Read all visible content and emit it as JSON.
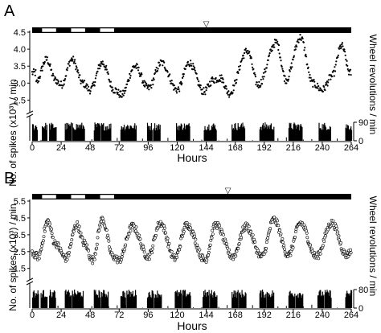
{
  "panel_letters": [
    "A",
    "B"
  ],
  "x_axis_label": "Hours",
  "y_axis_label_left": "No. of spikes (x10³) / min",
  "y_axis_label_right": "Wheel revolutions / min",
  "marker_symbol": "▽",
  "chart_data": [
    {
      "panel": "A",
      "type": "scatter",
      "xlabel": "Hours",
      "ylabel": "No. of spikes (x10³) / min",
      "xlim": [
        0,
        264
      ],
      "ylim": [
        2.25,
        4.5
      ],
      "x_ticks": [
        0,
        24,
        48,
        72,
        96,
        120,
        144,
        168,
        192,
        216,
        240,
        264
      ],
      "y_ticks": [
        2.5,
        3.0,
        3.5,
        4.0,
        4.5
      ],
      "y_tick_labels": [
        "2.5",
        "3.0",
        "3.5",
        "4.0",
        "4.5"
      ],
      "marker_style": "filled",
      "light_dark_bar": {
        "dark_bar_x_end": 264,
        "light_intervals": [
          [
            8,
            20
          ],
          [
            32,
            44
          ],
          [
            56,
            68
          ]
        ]
      },
      "arrow_marker_x": 144,
      "spike_peaks": [
        {
          "x": 3,
          "y": 3.0
        },
        {
          "x": 12,
          "y": 3.7
        },
        {
          "x": 19,
          "y": 3.1
        },
        {
          "x": 24,
          "y": 2.95
        },
        {
          "x": 33,
          "y": 3.7
        },
        {
          "x": 42,
          "y": 3.0
        },
        {
          "x": 48,
          "y": 2.8
        },
        {
          "x": 58,
          "y": 3.6
        },
        {
          "x": 68,
          "y": 2.8
        },
        {
          "x": 74,
          "y": 2.65
        },
        {
          "x": 85,
          "y": 3.5
        },
        {
          "x": 96,
          "y": 2.85
        },
        {
          "x": 107,
          "y": 3.6
        },
        {
          "x": 120,
          "y": 2.8
        },
        {
          "x": 130,
          "y": 3.6
        },
        {
          "x": 142,
          "y": 2.75
        },
        {
          "x": 150,
          "y": 3.1
        },
        {
          "x": 156,
          "y": 3.15
        },
        {
          "x": 163,
          "y": 2.7
        },
        {
          "x": 178,
          "y": 3.95
        },
        {
          "x": 187,
          "y": 2.95
        },
        {
          "x": 202,
          "y": 4.2
        },
        {
          "x": 210,
          "y": 3.1
        },
        {
          "x": 222,
          "y": 4.35
        },
        {
          "x": 232,
          "y": 3.0
        },
        {
          "x": 240,
          "y": 2.8
        },
        {
          "x": 248,
          "y": 3.2
        },
        {
          "x": 256,
          "y": 4.1
        },
        {
          "x": 263,
          "y": 3.3
        }
      ],
      "wheel_axis": {
        "ylim": [
          0,
          90
        ],
        "y_ticks": [
          0,
          90
        ],
        "y_tick_labels": [
          "0",
          "90"
        ]
      },
      "wheel_bouts": [
        [
          0,
          4
        ],
        [
          8,
          12
        ],
        [
          14,
          20
        ],
        [
          27,
          32
        ],
        [
          33,
          43
        ],
        [
          51,
          56
        ],
        [
          57,
          65
        ],
        [
          73,
          78
        ],
        [
          78,
          86
        ],
        [
          95,
          99
        ],
        [
          100,
          106
        ],
        [
          119,
          125
        ],
        [
          125,
          130
        ],
        [
          142,
          147
        ],
        [
          147,
          152
        ],
        [
          165,
          170
        ],
        [
          170,
          176
        ],
        [
          188,
          193
        ],
        [
          193,
          200
        ],
        [
          212,
          218
        ],
        [
          218,
          223
        ],
        [
          237,
          241
        ],
        [
          241,
          247
        ],
        [
          259,
          264
        ]
      ]
    },
    {
      "panel": "B",
      "type": "scatter",
      "xlabel": "Hours",
      "ylabel": "No. of spikes (x10³) / min",
      "xlim": [
        0,
        264
      ],
      "ylim": [
        1.2,
        5.5
      ],
      "x_ticks": [
        0,
        24,
        48,
        72,
        96,
        120,
        144,
        168,
        192,
        216,
        240,
        264
      ],
      "y_ticks": [
        1.5,
        2.5,
        3.5,
        4.5,
        5.5
      ],
      "y_tick_labels": [
        "1.5",
        "2.5",
        "3.5",
        "4.5",
        "5.5"
      ],
      "marker_style": "open",
      "light_dark_bar": {
        "dark_bar_x_end": 264,
        "light_intervals": [
          [
            8,
            20
          ],
          [
            32,
            44
          ],
          [
            56,
            68
          ]
        ]
      },
      "arrow_marker_x": 162,
      "spike_peaks": [
        {
          "x": 0,
          "y": 2.4
        },
        {
          "x": 5,
          "y": 2.2
        },
        {
          "x": 13,
          "y": 4.3
        },
        {
          "x": 19,
          "y": 3.0
        },
        {
          "x": 28,
          "y": 2.1
        },
        {
          "x": 37,
          "y": 4.1
        },
        {
          "x": 43,
          "y": 3.0
        },
        {
          "x": 50,
          "y": 2.0
        },
        {
          "x": 58,
          "y": 4.4
        },
        {
          "x": 67,
          "y": 2.2
        },
        {
          "x": 72,
          "y": 2.0
        },
        {
          "x": 83,
          "y": 4.0
        },
        {
          "x": 96,
          "y": 2.2
        },
        {
          "x": 106,
          "y": 4.2
        },
        {
          "x": 118,
          "y": 2.1
        },
        {
          "x": 128,
          "y": 4.1
        },
        {
          "x": 143,
          "y": 2.0
        },
        {
          "x": 152,
          "y": 4.1
        },
        {
          "x": 166,
          "y": 2.2
        },
        {
          "x": 177,
          "y": 4.0
        },
        {
          "x": 190,
          "y": 2.2
        },
        {
          "x": 200,
          "y": 4.4
        },
        {
          "x": 212,
          "y": 2.3
        },
        {
          "x": 222,
          "y": 4.2
        },
        {
          "x": 235,
          "y": 2.2
        },
        {
          "x": 248,
          "y": 4.2
        },
        {
          "x": 260,
          "y": 2.3
        },
        {
          "x": 264,
          "y": 2.5
        }
      ],
      "wheel_axis": {
        "ylim": [
          0,
          80
        ],
        "y_ticks": [
          0,
          80
        ],
        "y_tick_labels": [
          "0",
          "80"
        ]
      },
      "wheel_bouts": [
        [
          0,
          5
        ],
        [
          7,
          12
        ],
        [
          14,
          19
        ],
        [
          27,
          32
        ],
        [
          33,
          42
        ],
        [
          51,
          56
        ],
        [
          57,
          63
        ],
        [
          73,
          77
        ],
        [
          78,
          86
        ],
        [
          95,
          100
        ],
        [
          101,
          107
        ],
        [
          118,
          123
        ],
        [
          124,
          131
        ],
        [
          141,
          146
        ],
        [
          147,
          153
        ],
        [
          165,
          170
        ],
        [
          171,
          177
        ],
        [
          188,
          193
        ],
        [
          194,
          200
        ],
        [
          212,
          217
        ],
        [
          218,
          224
        ],
        [
          236,
          241
        ],
        [
          242,
          247
        ],
        [
          259,
          264
        ]
      ]
    }
  ]
}
